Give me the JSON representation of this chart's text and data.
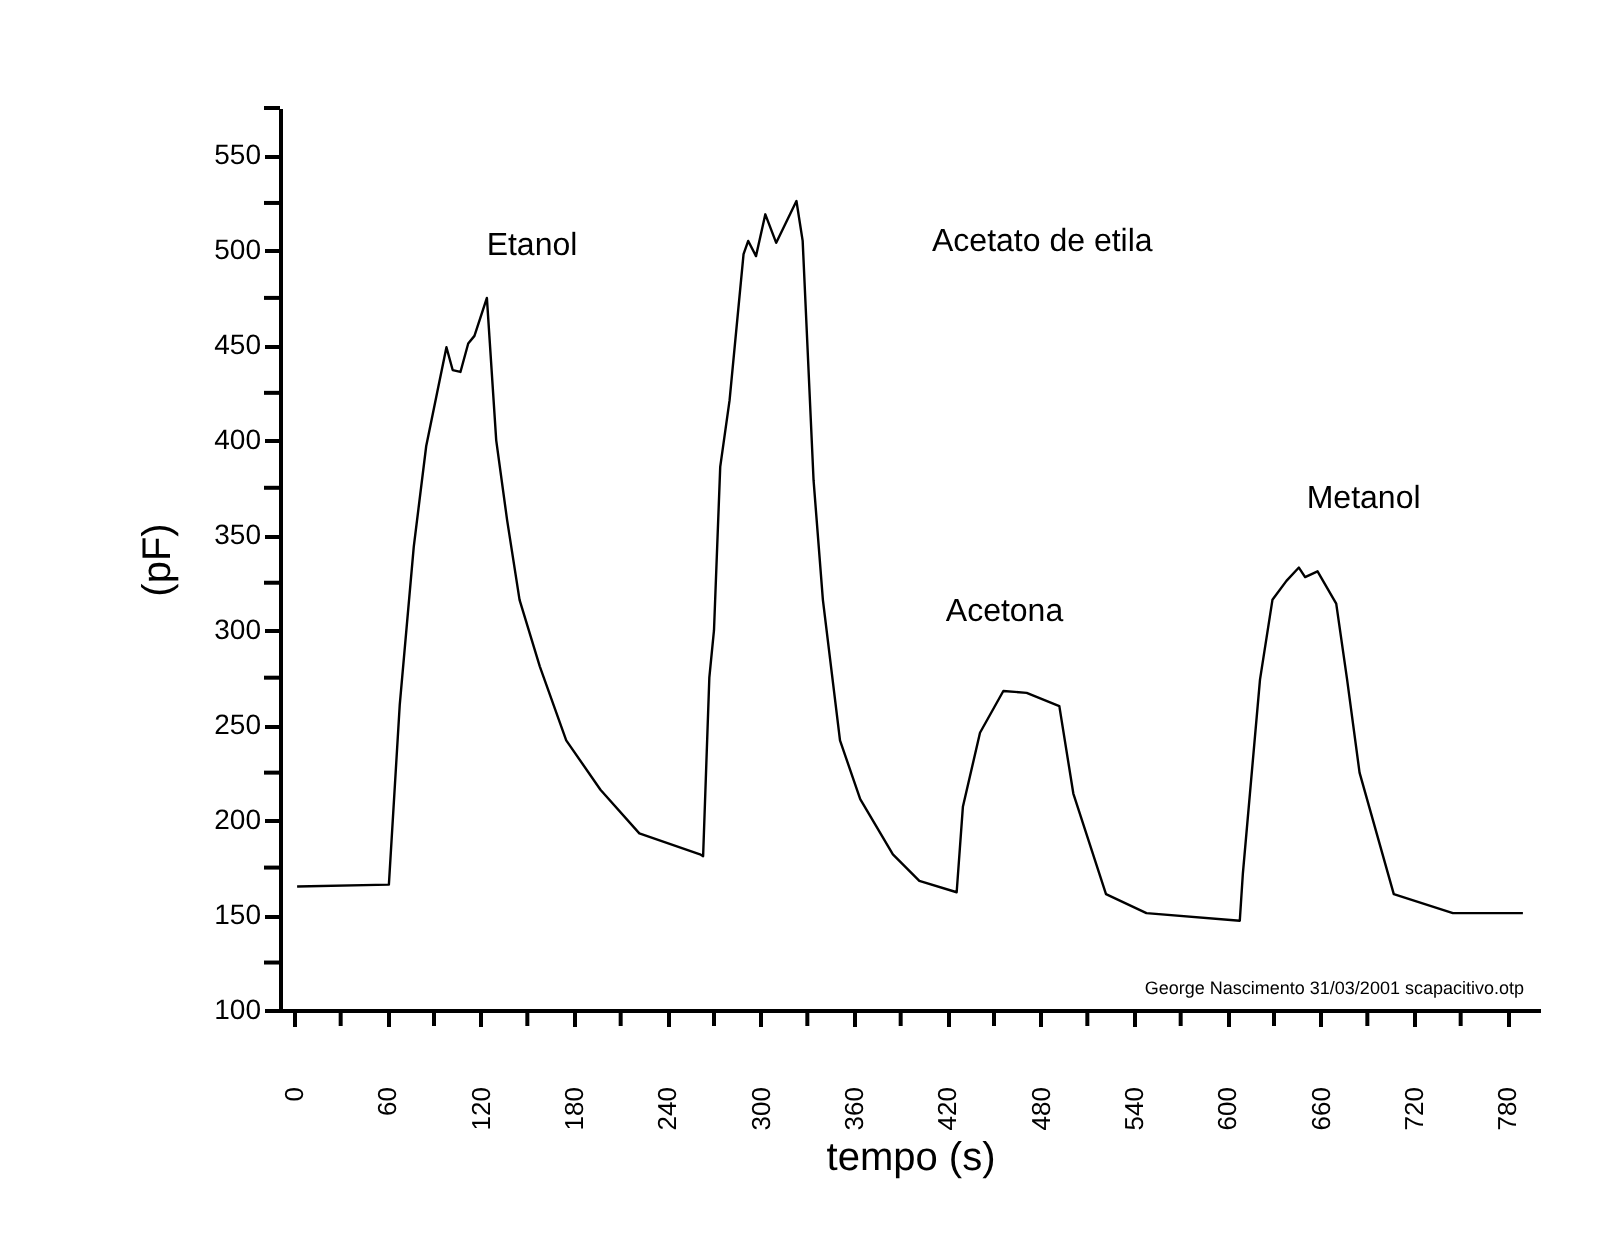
{
  "chart_data": {
    "type": "line",
    "xlabel": "tempo (s)",
    "ylabel": "(pF)",
    "x": [
      2,
      61,
      68,
      77,
      85,
      92,
      98,
      102,
      107,
      112,
      116,
      124,
      130,
      137,
      145,
      158,
      175,
      197,
      222,
      261,
      263,
      267,
      270,
      274,
      280,
      289,
      292,
      297,
      303,
      310,
      323,
      327,
      334,
      340,
      351,
      364,
      385,
      402,
      426,
      430,
      441,
      456,
      471,
      492,
      501,
      522,
      548,
      608,
      610,
      621,
      629,
      638,
      646,
      650,
      658,
      670,
      677,
      685,
      707,
      745,
      790
    ],
    "series": [
      {
        "color": "#000000",
        "values": [
          165,
          166,
          261,
          344,
          397,
          425,
          449,
          437,
          436,
          451,
          455,
          475,
          400,
          358,
          316,
          281,
          242,
          216,
          193,
          182,
          181,
          275,
          300,
          386,
          421,
          498,
          505,
          497,
          519,
          504,
          526,
          505,
          379,
          316,
          242,
          211,
          182,
          168,
          162,
          207,
          246,
          268,
          267,
          260,
          214,
          161,
          151,
          147,
          172,
          274,
          316,
          326,
          333,
          328,
          331,
          314,
          274,
          225,
          161,
          151,
          151
        ]
      }
    ],
    "xlim": [
      -9,
      801
    ],
    "ylim": [
      100,
      575
    ],
    "xticks": [
      0,
      {
        "value": 30,
        "label": null
      },
      60,
      {
        "value": 90,
        "label": null
      },
      120,
      {
        "value": 150,
        "label": null
      },
      180,
      {
        "value": 210,
        "label": null
      },
      240,
      {
        "value": 270,
        "label": null
      },
      300,
      {
        "value": 330,
        "label": null
      },
      360,
      {
        "value": 390,
        "label": null
      },
      420,
      {
        "value": 450,
        "label": null
      },
      480,
      {
        "value": 510,
        "label": null
      },
      540,
      {
        "value": 570,
        "label": null
      },
      600,
      {
        "value": 630,
        "label": null
      },
      660,
      {
        "value": 690,
        "label": null
      },
      720,
      {
        "value": 750,
        "label": null
      },
      780
    ],
    "yticks": [
      100,
      {
        "value": 125,
        "label": null
      },
      150,
      {
        "value": 175,
        "label": null
      },
      200,
      {
        "value": 225,
        "label": null
      },
      250,
      {
        "value": 275,
        "label": null
      },
      300,
      {
        "value": 325,
        "label": null
      },
      350,
      {
        "value": 375,
        "label": null
      },
      400,
      {
        "value": 425,
        "label": null
      },
      450,
      {
        "value": 475,
        "label": null
      },
      500,
      {
        "value": 525,
        "label": null
      },
      550,
      {
        "value": 575,
        "label": null
      }
    ],
    "grid": false,
    "marker": "none",
    "line_style": "solid",
    "annotations": [
      "Etanol",
      "Acetato de etila",
      "Acetona",
      "Metanol",
      "George Nascimento 31/03/2001 scapacitivo.otp"
    ]
  }
}
